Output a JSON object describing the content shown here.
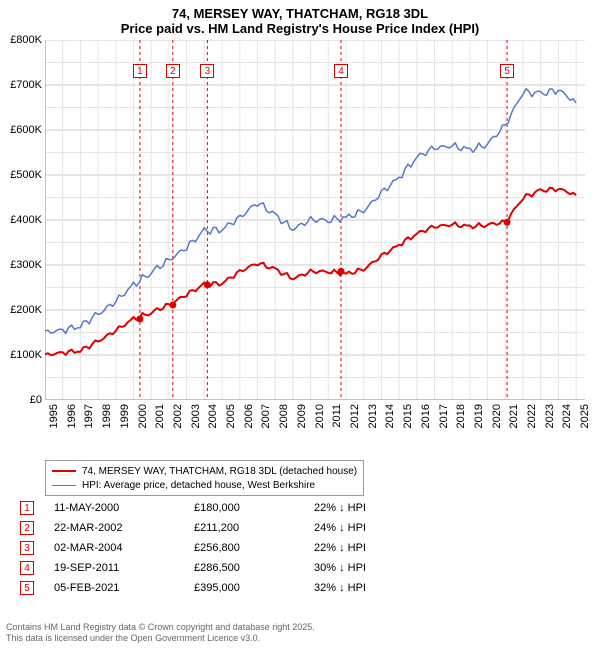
{
  "title_line1": "74, MERSEY WAY, THATCHAM, RG18 3DL",
  "title_line2": "Price paid vs. HM Land Registry's House Price Index (HPI)",
  "chart": {
    "type": "line",
    "background_color": "#ffffff",
    "grid_color_major": "#cccccc",
    "grid_color_minor": "#e5e5e5",
    "axis_color": "#000000",
    "x_range": [
      "1995",
      "2025"
    ],
    "x_ticks": [
      "1995",
      "1996",
      "1997",
      "1998",
      "1999",
      "2000",
      "2001",
      "2002",
      "2003",
      "2004",
      "2005",
      "2006",
      "2007",
      "2008",
      "2009",
      "2010",
      "2011",
      "2012",
      "2013",
      "2014",
      "2015",
      "2016",
      "2017",
      "2018",
      "2019",
      "2020",
      "2021",
      "2022",
      "2023",
      "2024",
      "2025"
    ],
    "y_range": [
      0,
      800000
    ],
    "y_ticks": [
      "£0",
      "£100K",
      "£200K",
      "£300K",
      "£400K",
      "£500K",
      "£600K",
      "£700K",
      "£800K"
    ],
    "label_fontsize": 11,
    "series": [
      {
        "name": "74, MERSEY WAY, THATCHAM, RG18 3DL (detached house)",
        "color": "#e00000",
        "line_width": 2,
        "data": [
          [
            1995,
            100
          ],
          [
            1996,
            105
          ],
          [
            1997,
            110
          ],
          [
            1998,
            130
          ],
          [
            1999,
            155
          ],
          [
            2000,
            180
          ],
          [
            2001,
            195
          ],
          [
            2002,
            211
          ],
          [
            2003,
            235
          ],
          [
            2004,
            256
          ],
          [
            2005,
            260
          ],
          [
            2006,
            285
          ],
          [
            2007,
            305
          ],
          [
            2008,
            290
          ],
          [
            2009,
            270
          ],
          [
            2010,
            285
          ],
          [
            2011,
            286
          ],
          [
            2012,
            280
          ],
          [
            2013,
            290
          ],
          [
            2014,
            320
          ],
          [
            2015,
            345
          ],
          [
            2016,
            370
          ],
          [
            2017,
            385
          ],
          [
            2018,
            390
          ],
          [
            2019,
            385
          ],
          [
            2020,
            390
          ],
          [
            2021,
            395
          ],
          [
            2022,
            450
          ],
          [
            2023,
            465
          ],
          [
            2024,
            470
          ],
          [
            2025,
            455
          ]
        ]
      },
      {
        "name": "HPI: Average price, detached house, West Berkshire",
        "color": "#5577cc",
        "line_width": 1.5,
        "data": [
          [
            1995,
            150
          ],
          [
            1996,
            155
          ],
          [
            1997,
            165
          ],
          [
            1998,
            190
          ],
          [
            1999,
            220
          ],
          [
            2000,
            255
          ],
          [
            2001,
            285
          ],
          [
            2002,
            310
          ],
          [
            2003,
            340
          ],
          [
            2004,
            375
          ],
          [
            2005,
            380
          ],
          [
            2006,
            405
          ],
          [
            2007,
            440
          ],
          [
            2008,
            410
          ],
          [
            2009,
            380
          ],
          [
            2010,
            400
          ],
          [
            2011,
            400
          ],
          [
            2012,
            405
          ],
          [
            2013,
            420
          ],
          [
            2014,
            460
          ],
          [
            2015,
            495
          ],
          [
            2016,
            540
          ],
          [
            2017,
            560
          ],
          [
            2018,
            565
          ],
          [
            2019,
            555
          ],
          [
            2020,
            570
          ],
          [
            2021,
            610
          ],
          [
            2022,
            685
          ],
          [
            2023,
            680
          ],
          [
            2024,
            690
          ],
          [
            2025,
            660
          ]
        ]
      }
    ],
    "sale_points": [
      {
        "x": 2000.36,
        "y": 180
      },
      {
        "x": 2002.22,
        "y": 211
      },
      {
        "x": 2004.17,
        "y": 256
      },
      {
        "x": 2011.72,
        "y": 286
      },
      {
        "x": 2021.1,
        "y": 395
      }
    ],
    "sale_marker_color": "#e00000",
    "sale_marker_radius": 3.5,
    "vline_color": "#e00000",
    "vline_dash": "3,3",
    "markers": [
      {
        "x": 2000.36,
        "label": "1",
        "color": "#e00000"
      },
      {
        "x": 2002.22,
        "label": "2",
        "color": "#e00000"
      },
      {
        "x": 2004.17,
        "label": "3",
        "color": "#e00000"
      },
      {
        "x": 2011.72,
        "label": "4",
        "color": "#e00000"
      },
      {
        "x": 2021.1,
        "label": "5",
        "color": "#e00000"
      }
    ]
  },
  "legend": {
    "border_color": "#999999",
    "fontsize": 10,
    "items": [
      {
        "color": "#e00000",
        "width": 2,
        "text": "74, MERSEY WAY, THATCHAM, RG18 3DL (detached house)"
      },
      {
        "color": "#5577cc",
        "width": 1.5,
        "text": "HPI: Average price, detached house, West Berkshire"
      }
    ]
  },
  "sales_table": {
    "rows": [
      {
        "n": "1",
        "color": "#e00000",
        "date": "11-MAY-2000",
        "price": "£180,000",
        "diff": "22% ↓ HPI"
      },
      {
        "n": "2",
        "color": "#e00000",
        "date": "22-MAR-2002",
        "price": "£211,200",
        "diff": "24% ↓ HPI"
      },
      {
        "n": "3",
        "color": "#e00000",
        "date": "02-MAR-2004",
        "price": "£256,800",
        "diff": "22% ↓ HPI"
      },
      {
        "n": "4",
        "color": "#e00000",
        "date": "19-SEP-2011",
        "price": "£286,500",
        "diff": "30% ↓ HPI"
      },
      {
        "n": "5",
        "color": "#e00000",
        "date": "05-FEB-2021",
        "price": "£395,000",
        "diff": "32% ↓ HPI"
      }
    ]
  },
  "footer_line1": "Contains HM Land Registry data © Crown copyright and database right 2025.",
  "footer_line2": "This data is licensed under the Open Government Licence v3.0."
}
